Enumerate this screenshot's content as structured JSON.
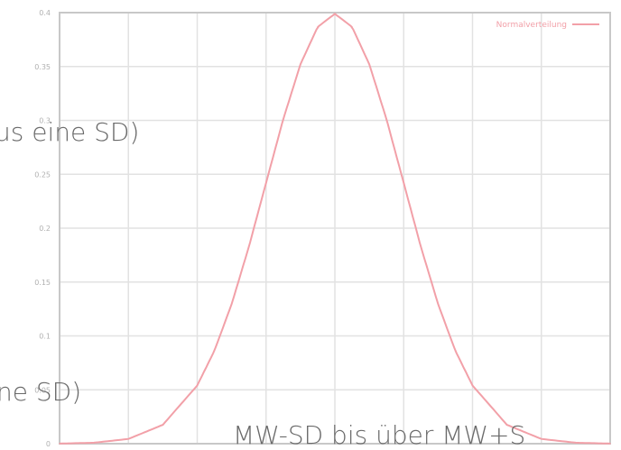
{
  "overlays": {
    "line1": "us eine SD)",
    "line2": "ne SD)",
    "line3": "MW-SD bis über MW+S"
  },
  "chart_data": {
    "type": "line",
    "title": "",
    "xlabel": "",
    "ylabel": "",
    "legend": {
      "position": "top-right",
      "entries": [
        "Normalverteilung"
      ]
    },
    "grid": true,
    "xlim": [
      -4,
      4
    ],
    "ylim": [
      0,
      0.4
    ],
    "yticks": [
      0,
      0.05,
      0.1,
      0.15,
      0.2,
      0.25,
      0.3,
      0.35,
      0.4
    ],
    "ytick_labels": [
      "0",
      "0.05",
      "0.1",
      "0.15",
      "0.2",
      "0.25",
      "0.3",
      "0.35",
      "0.4"
    ],
    "xticks": [
      -4,
      -3,
      -2,
      -1,
      0,
      1,
      2,
      3,
      4
    ],
    "series": [
      {
        "name": "Normalverteilung",
        "color": "#f2a0a8",
        "x": [
          -4,
          -3.5,
          -3,
          -2.5,
          -2,
          -1.75,
          -1.5,
          -1.25,
          -1,
          -0.75,
          -0.5,
          -0.25,
          0,
          0.25,
          0.5,
          0.75,
          1,
          1.25,
          1.5,
          1.75,
          2,
          2.5,
          3,
          3.5,
          4
        ],
        "y": [
          0.0001,
          0.0009,
          0.0044,
          0.0175,
          0.054,
          0.0863,
          0.1295,
          0.1826,
          0.242,
          0.3011,
          0.3521,
          0.3867,
          0.3989,
          0.3867,
          0.3521,
          0.3011,
          0.242,
          0.1826,
          0.1295,
          0.0863,
          0.054,
          0.0175,
          0.0044,
          0.0009,
          0.0001
        ]
      }
    ]
  },
  "colors": {
    "axis": "#c8c8c8",
    "grid": "#e2e2e2",
    "tick_text": "#b0b0b0",
    "overlay_text": "#6a6a6a"
  }
}
